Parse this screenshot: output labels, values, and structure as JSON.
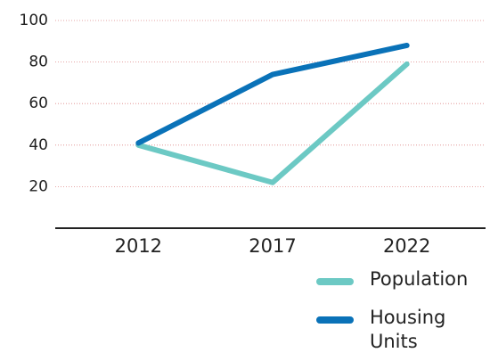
{
  "chart_data": {
    "type": "line",
    "categories": [
      "2012",
      "2017",
      "2022"
    ],
    "series": [
      {
        "name": "Population",
        "color": "#6cc9c4",
        "values": [
          40,
          22,
          79
        ]
      },
      {
        "name": "Housing Units",
        "color": "#0a72b8",
        "values": [
          41,
          74,
          88
        ]
      }
    ],
    "ylim": [
      0,
      100
    ],
    "yticks": [
      20,
      40,
      60,
      80,
      100
    ],
    "grid": true
  }
}
